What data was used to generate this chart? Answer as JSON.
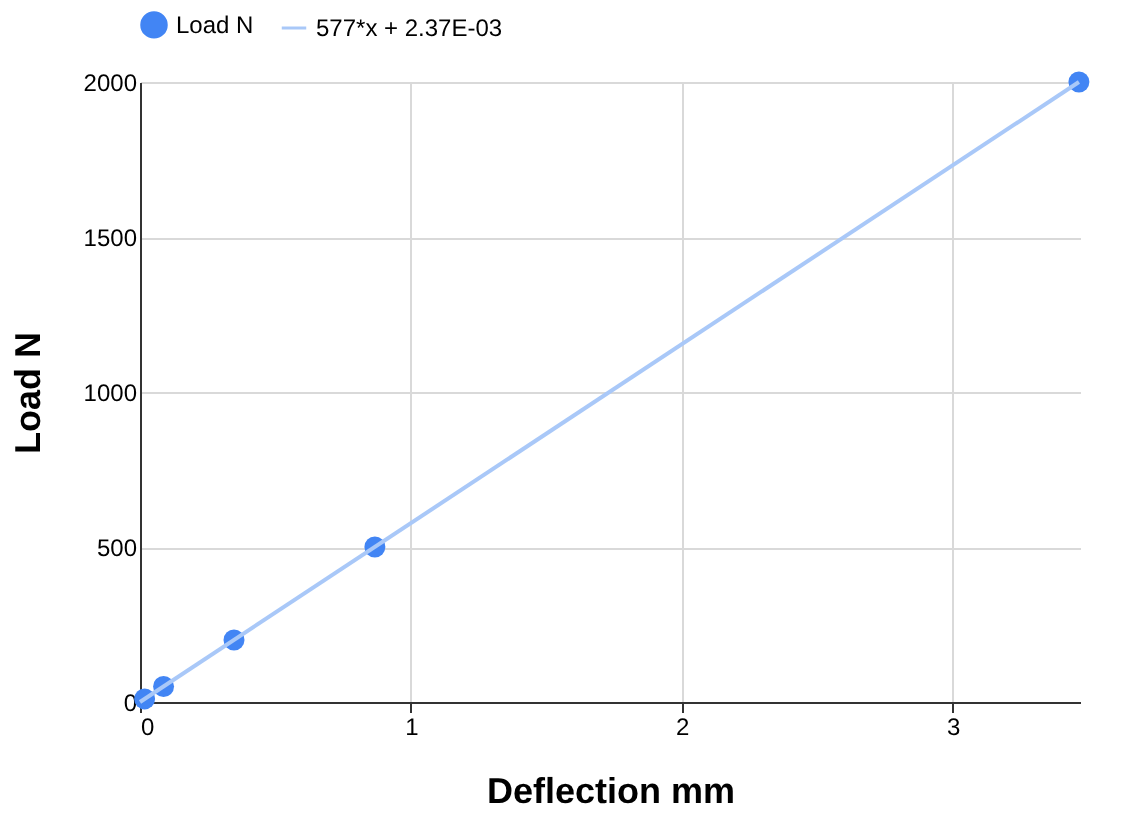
{
  "chart_data": {
    "type": "scatter",
    "xlabel": "Deflection mm",
    "ylabel": "Load N",
    "series": [
      {
        "name": "Load N",
        "type": "scatter",
        "color": "#4285f4",
        "marker": "circle",
        "x": [
          0.017,
          0.087,
          0.347,
          0.867,
          3.466
        ],
        "values": [
          10,
          50,
          200,
          500,
          2000
        ]
      },
      {
        "name": "577*x + 2.37E-03",
        "type": "line",
        "color": "#a9c8f8",
        "line_style": "solid",
        "x": [
          0,
          3.466
        ],
        "values": [
          0,
          2000
        ]
      }
    ],
    "xlim": [
      0,
      3.47
    ],
    "xticks": [
      0,
      1,
      2,
      3
    ],
    "ylim": [
      0,
      2000
    ],
    "yticks": [
      0,
      500,
      1000,
      1500,
      2000
    ],
    "grid": true,
    "legend": "top"
  }
}
